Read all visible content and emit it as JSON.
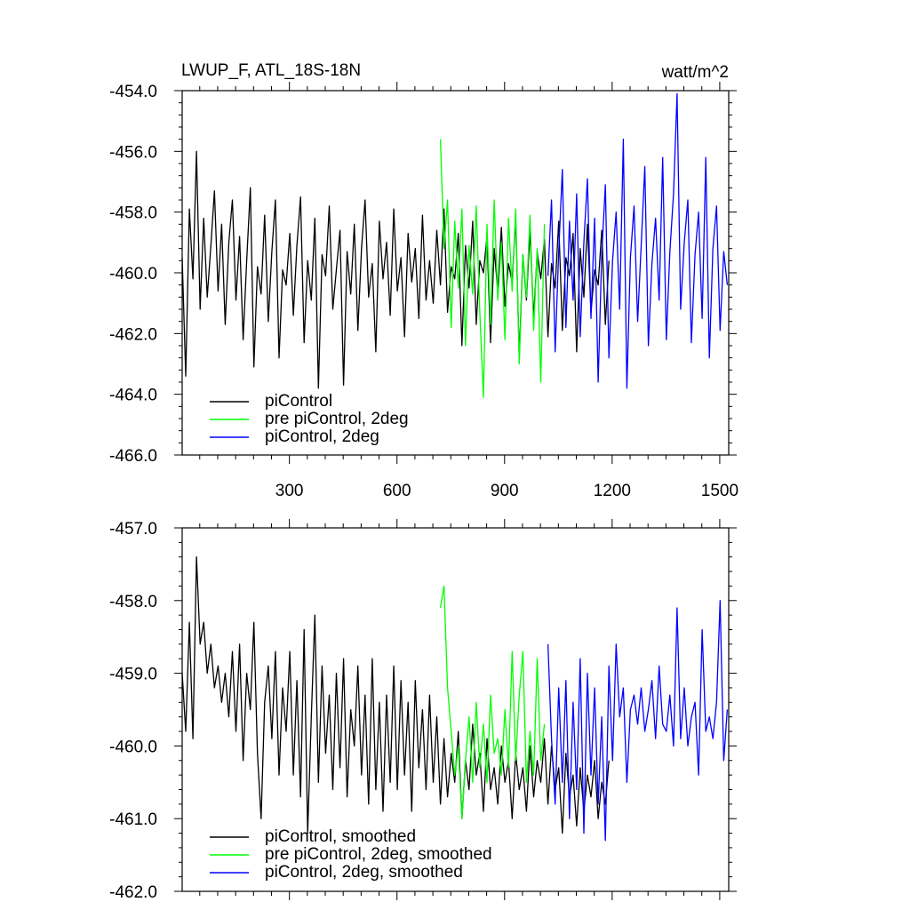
{
  "figure": {
    "title": "LWUP_F, ATL_18S-18N",
    "units": "watt/m^2"
  },
  "chart_data": [
    {
      "type": "line",
      "title": "LWUP_F, ATL_18S-18N",
      "units": "watt/m^2",
      "xlim": [
        1,
        1525
      ],
      "ylim": [
        -466.0,
        -454.0
      ],
      "x_tick_values": [
        300,
        600,
        900,
        1200,
        1500
      ],
      "x_tick_labels": [
        "300",
        "600",
        "900",
        "1200",
        "1500"
      ],
      "y_tick_values": [
        -466,
        -464,
        -462,
        -460,
        -458,
        -456,
        -454
      ],
      "y_tick_labels": [
        "-466.0",
        "-464.0",
        "-462.0",
        "-460.0",
        "-458.0",
        "-456.0",
        "-454.0"
      ],
      "grid": false,
      "legend_position": "bottom-left",
      "series": [
        {
          "name": "piControl",
          "color": "#000000",
          "x": [
            1,
            11,
            21,
            31,
            41,
            51,
            61,
            71,
            81,
            91,
            101,
            111,
            121,
            131,
            141,
            151,
            161,
            171,
            181,
            191,
            201,
            211,
            221,
            231,
            241,
            251,
            261,
            271,
            281,
            291,
            301,
            311,
            321,
            331,
            341,
            351,
            361,
            371,
            381,
            391,
            401,
            411,
            421,
            431,
            441,
            451,
            461,
            471,
            481,
            491,
            501,
            511,
            521,
            531,
            541,
            551,
            561,
            571,
            581,
            591,
            601,
            611,
            621,
            631,
            641,
            651,
            661,
            671,
            681,
            691,
            701,
            711,
            721,
            731,
            741,
            751,
            761,
            771,
            781,
            791,
            801,
            811,
            821,
            831,
            841,
            851,
            861,
            871,
            881,
            891,
            901,
            911,
            921,
            931,
            941,
            951,
            961,
            971,
            981,
            991,
            1001,
            1011,
            1021,
            1031,
            1041,
            1051,
            1061,
            1071,
            1081,
            1091,
            1101,
            1111,
            1121,
            1131,
            1141,
            1151,
            1161,
            1171,
            1181,
            1191
          ],
          "values": [
            -459.5,
            -463.4,
            -457.9,
            -460.2,
            -456.0,
            -461.2,
            -458.2,
            -460.8,
            -459.1,
            -457.3,
            -460.6,
            -458.4,
            -461.7,
            -459.0,
            -457.6,
            -460.9,
            -458.8,
            -462.2,
            -459.6,
            -457.2,
            -463.1,
            -459.8,
            -460.7,
            -458.1,
            -461.6,
            -459.3,
            -457.6,
            -462.8,
            -459.9,
            -460.4,
            -458.7,
            -461.4,
            -459.1,
            -457.5,
            -462.3,
            -459.6,
            -460.9,
            -458.2,
            -463.8,
            -459.4,
            -460.1,
            -457.8,
            -461.2,
            -459.9,
            -458.6,
            -463.7,
            -459.3,
            -460.7,
            -458.4,
            -461.9,
            -459.2,
            -457.6,
            -460.8,
            -459.7,
            -462.6,
            -458.3,
            -460.2,
            -459.0,
            -461.4,
            -457.9,
            -460.6,
            -459.5,
            -462.1,
            -458.7,
            -460.3,
            -459.2,
            -461.5,
            -458.1,
            -460.9,
            -459.6,
            -461.0,
            -458.6,
            -460.4,
            -457.9,
            -461.3,
            -459.8,
            -460.2,
            -458.7,
            -462.4,
            -459.1,
            -460.5,
            -458.3,
            -461.7,
            -459.6,
            -460.0,
            -458.8,
            -462.3,
            -459.2,
            -460.6,
            -458.5,
            -461.1,
            -459.7,
            -460.3,
            -458.2,
            -462.8,
            -459.4,
            -460.9,
            -458.6,
            -461.5,
            -459.3,
            -460.2,
            -458.9,
            -462.1,
            -459.7,
            -460.5,
            -458.3,
            -461.9,
            -459.5,
            -460.1,
            -458.7,
            -462.6,
            -459.2,
            -460.8,
            -458.4,
            -461.3,
            -459.9,
            -460.4,
            -458.6,
            -461.7,
            -459.6
          ]
        },
        {
          "name": "pre piControl, 2deg",
          "color": "#00ff00",
          "x": [
            721,
            731,
            741,
            751,
            761,
            771,
            781,
            791,
            801,
            811,
            821,
            831,
            841,
            851,
            861,
            871,
            881,
            891,
            901,
            911,
            921,
            931,
            941,
            951,
            961,
            971,
            981,
            991,
            1001,
            1011
          ],
          "values": [
            -455.6,
            -459.2,
            -457.6,
            -461.8,
            -458.3,
            -460.5,
            -457.9,
            -462.4,
            -459.1,
            -460.7,
            -457.8,
            -461.3,
            -464.1,
            -458.4,
            -461.7,
            -457.6,
            -460.9,
            -459.0,
            -462.2,
            -458.2,
            -460.6,
            -457.9,
            -463.0,
            -459.4,
            -460.8,
            -458.1,
            -461.9,
            -459.2,
            -463.6,
            -458.4
          ]
        },
        {
          "name": "piControl, 2deg",
          "color": "#0000ff",
          "x": [
            1021,
            1031,
            1041,
            1051,
            1061,
            1071,
            1081,
            1091,
            1101,
            1111,
            1121,
            1131,
            1141,
            1151,
            1161,
            1171,
            1181,
            1191,
            1201,
            1211,
            1221,
            1231,
            1241,
            1251,
            1261,
            1271,
            1281,
            1291,
            1301,
            1311,
            1321,
            1331,
            1341,
            1351,
            1361,
            1371,
            1381,
            1391,
            1401,
            1411,
            1421,
            1431,
            1441,
            1451,
            1461,
            1471,
            1481,
            1491,
            1501,
            1511,
            1521
          ],
          "values": [
            -460.1,
            -457.6,
            -462.6,
            -459.3,
            -456.6,
            -461.8,
            -458.3,
            -460.9,
            -457.4,
            -462.1,
            -459.0,
            -456.9,
            -461.5,
            -458.2,
            -463.6,
            -459.4,
            -457.1,
            -462.8,
            -459.6,
            -458.0,
            -461.2,
            -455.6,
            -463.8,
            -459.5,
            -457.8,
            -461.6,
            -459.1,
            -456.5,
            -462.4,
            -459.7,
            -458.2,
            -460.9,
            -456.2,
            -462.2,
            -459.3,
            -457.4,
            -454.1,
            -461.2,
            -459.0,
            -457.6,
            -462.3,
            -459.4,
            -458.0,
            -461.5,
            -456.2,
            -462.8,
            -459.2,
            -457.8,
            -461.9,
            -459.3,
            -460.4
          ]
        }
      ]
    },
    {
      "type": "line",
      "xlim": [
        1,
        1525
      ],
      "ylim": [
        -462.0,
        -457.0
      ],
      "x_tick_values": [
        300,
        600,
        900,
        1200,
        1500
      ],
      "y_tick_values": [
        -462,
        -461,
        -460,
        -459,
        -458,
        -457
      ],
      "y_tick_labels": [
        "-462.0",
        "-461.0",
        "-460.0",
        "-459.0",
        "-458.0",
        "-457.0"
      ],
      "grid": false,
      "legend_position": "bottom-left",
      "series": [
        {
          "name": "piControl, smoothed",
          "color": "#000000",
          "x": [
            1,
            11,
            21,
            31,
            41,
            51,
            61,
            71,
            81,
            91,
            101,
            111,
            121,
            131,
            141,
            151,
            161,
            171,
            181,
            191,
            201,
            211,
            221,
            231,
            241,
            251,
            261,
            271,
            281,
            291,
            301,
            311,
            321,
            331,
            341,
            351,
            361,
            371,
            381,
            391,
            401,
            411,
            421,
            431,
            441,
            451,
            461,
            471,
            481,
            491,
            501,
            511,
            521,
            531,
            541,
            551,
            561,
            571,
            581,
            591,
            601,
            611,
            621,
            631,
            641,
            651,
            661,
            671,
            681,
            691,
            701,
            711,
            721,
            731,
            741,
            751,
            761,
            771,
            781,
            791,
            801,
            811,
            821,
            831,
            841,
            851,
            861,
            871,
            881,
            891,
            901,
            911,
            921,
            931,
            941,
            951,
            961,
            971,
            981,
            991,
            1001,
            1011,
            1021,
            1031,
            1041,
            1051,
            1061,
            1071,
            1081,
            1091,
            1101,
            1111,
            1121,
            1131,
            1141,
            1151,
            1161,
            1171,
            1181,
            1191
          ],
          "values": [
            -459.0,
            -459.8,
            -458.3,
            -459.9,
            -457.4,
            -458.6,
            -458.3,
            -459.0,
            -458.6,
            -459.2,
            -458.9,
            -459.4,
            -459.0,
            -459.6,
            -458.7,
            -459.8,
            -458.6,
            -460.2,
            -459.0,
            -459.5,
            -458.3,
            -460.1,
            -461.0,
            -459.4,
            -458.9,
            -459.9,
            -458.7,
            -460.4,
            -459.2,
            -459.8,
            -458.7,
            -460.4,
            -459.1,
            -460.7,
            -458.4,
            -461.2,
            -459.6,
            -458.2,
            -460.5,
            -458.9,
            -460.1,
            -459.3,
            -460.6,
            -459.0,
            -460.3,
            -458.8,
            -460.7,
            -459.5,
            -460.0,
            -458.9,
            -460.4,
            -459.3,
            -460.8,
            -458.8,
            -460.6,
            -459.4,
            -460.9,
            -459.3,
            -460.5,
            -458.9,
            -460.6,
            -459.1,
            -460.4,
            -459.4,
            -460.9,
            -459.1,
            -460.3,
            -459.5,
            -460.6,
            -459.3,
            -460.5,
            -459.6,
            -460.8,
            -459.9,
            -460.7,
            -460.1,
            -460.5,
            -459.8,
            -461.0,
            -460.2,
            -460.6,
            -459.7,
            -460.4,
            -460.1,
            -460.9,
            -459.9,
            -460.6,
            -460.3,
            -460.8,
            -460.0,
            -460.5,
            -460.2,
            -461.0,
            -460.1,
            -460.6,
            -460.3,
            -460.9,
            -460.0,
            -460.7,
            -460.2,
            -460.5,
            -459.9,
            -460.8,
            -460.0,
            -460.6,
            -460.3,
            -461.2,
            -460.1,
            -460.7,
            -460.4,
            -461.1,
            -460.3,
            -460.9,
            -460.4,
            -460.7,
            -460.2,
            -461.0,
            -460.5,
            -460.8,
            -460.2
          ]
        },
        {
          "name": "pre piControl, 2deg, smoothed",
          "color": "#00ff00",
          "x": [
            721,
            731,
            741,
            751,
            761,
            771,
            781,
            791,
            801,
            811,
            821,
            831,
            841,
            851,
            861,
            871,
            881,
            891,
            901,
            911,
            921,
            931,
            941,
            951,
            961,
            971,
            981,
            991,
            1001,
            1011
          ],
          "values": [
            -458.1,
            -457.8,
            -459.2,
            -459.8,
            -460.4,
            -460.0,
            -461.0,
            -460.2,
            -459.6,
            -460.5,
            -459.4,
            -460.3,
            -459.7,
            -460.5,
            -459.3,
            -460.1,
            -459.9,
            -460.4,
            -459.5,
            -460.3,
            -458.7,
            -460.2,
            -459.3,
            -458.7,
            -460.5,
            -459.8,
            -460.4,
            -458.8,
            -460.2,
            -459.7
          ]
        },
        {
          "name": "piControl, 2deg, smoothed",
          "color": "#0000ff",
          "x": [
            1021,
            1031,
            1041,
            1051,
            1061,
            1071,
            1081,
            1091,
            1101,
            1111,
            1121,
            1131,
            1141,
            1151,
            1161,
            1171,
            1181,
            1191,
            1201,
            1211,
            1221,
            1231,
            1241,
            1251,
            1261,
            1271,
            1281,
            1291,
            1301,
            1311,
            1321,
            1331,
            1341,
            1351,
            1361,
            1371,
            1381,
            1391,
            1401,
            1411,
            1421,
            1431,
            1441,
            1451,
            1461,
            1471,
            1481,
            1491,
            1501,
            1511,
            1521
          ],
          "values": [
            -458.6,
            -459.9,
            -460.8,
            -459.2,
            -460.5,
            -459.1,
            -461.0,
            -459.4,
            -460.6,
            -458.8,
            -461.2,
            -459.0,
            -460.4,
            -459.2,
            -460.8,
            -459.6,
            -461.3,
            -458.9,
            -460.2,
            -458.6,
            -459.6,
            -459.2,
            -460.5,
            -459.5,
            -459.3,
            -459.7,
            -459.2,
            -459.8,
            -459.5,
            -459.1,
            -459.9,
            -458.9,
            -459.7,
            -459.8,
            -459.3,
            -460.0,
            -458.1,
            -459.9,
            -459.2,
            -460.0,
            -459.6,
            -459.4,
            -460.4,
            -458.4,
            -459.8,
            -459.6,
            -459.9,
            -459.4,
            -458.0,
            -460.2,
            -459.5
          ]
        }
      ]
    }
  ]
}
